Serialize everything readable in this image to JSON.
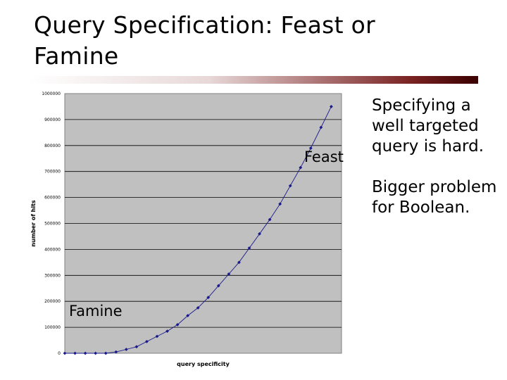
{
  "slide": {
    "title": "Query Specification: Feast or Famine",
    "points": [
      "Specifying a well targeted query is hard.",
      "Bigger problem for Boolean."
    ],
    "accent_color": "#7a2222"
  },
  "chart_data": {
    "type": "line",
    "title": "",
    "xlabel": "query specificity",
    "ylabel": "number of hits",
    "ylim": [
      0,
      1000000
    ],
    "yticks": [
      "0",
      "100000",
      "200000",
      "300000",
      "400000",
      "500000",
      "600000",
      "700000",
      "800000",
      "900000",
      "1000000"
    ],
    "grid": true,
    "plot_background": "#c0c0c0",
    "series_color": "#1a1a8c",
    "annotations": [
      {
        "text": "Feast",
        "x": 26,
        "y": 780000
      },
      {
        "text": "Famine",
        "x": 1,
        "y": 150000
      }
    ],
    "series": [
      {
        "x": [
          0,
          1,
          2,
          3,
          4,
          5,
          6,
          7,
          8,
          9,
          10,
          11,
          12,
          13,
          14,
          15,
          16,
          17,
          18,
          19,
          20,
          21,
          22,
          23,
          24,
          25,
          26
        ],
        "values": [
          0,
          0,
          0,
          0,
          0,
          5000,
          15000,
          25000,
          45000,
          65000,
          85000,
          110000,
          145000,
          175000,
          215000,
          260000,
          305000,
          350000,
          405000,
          460000,
          515000,
          575000,
          645000,
          715000,
          790000,
          870000,
          950000
        ]
      }
    ]
  }
}
